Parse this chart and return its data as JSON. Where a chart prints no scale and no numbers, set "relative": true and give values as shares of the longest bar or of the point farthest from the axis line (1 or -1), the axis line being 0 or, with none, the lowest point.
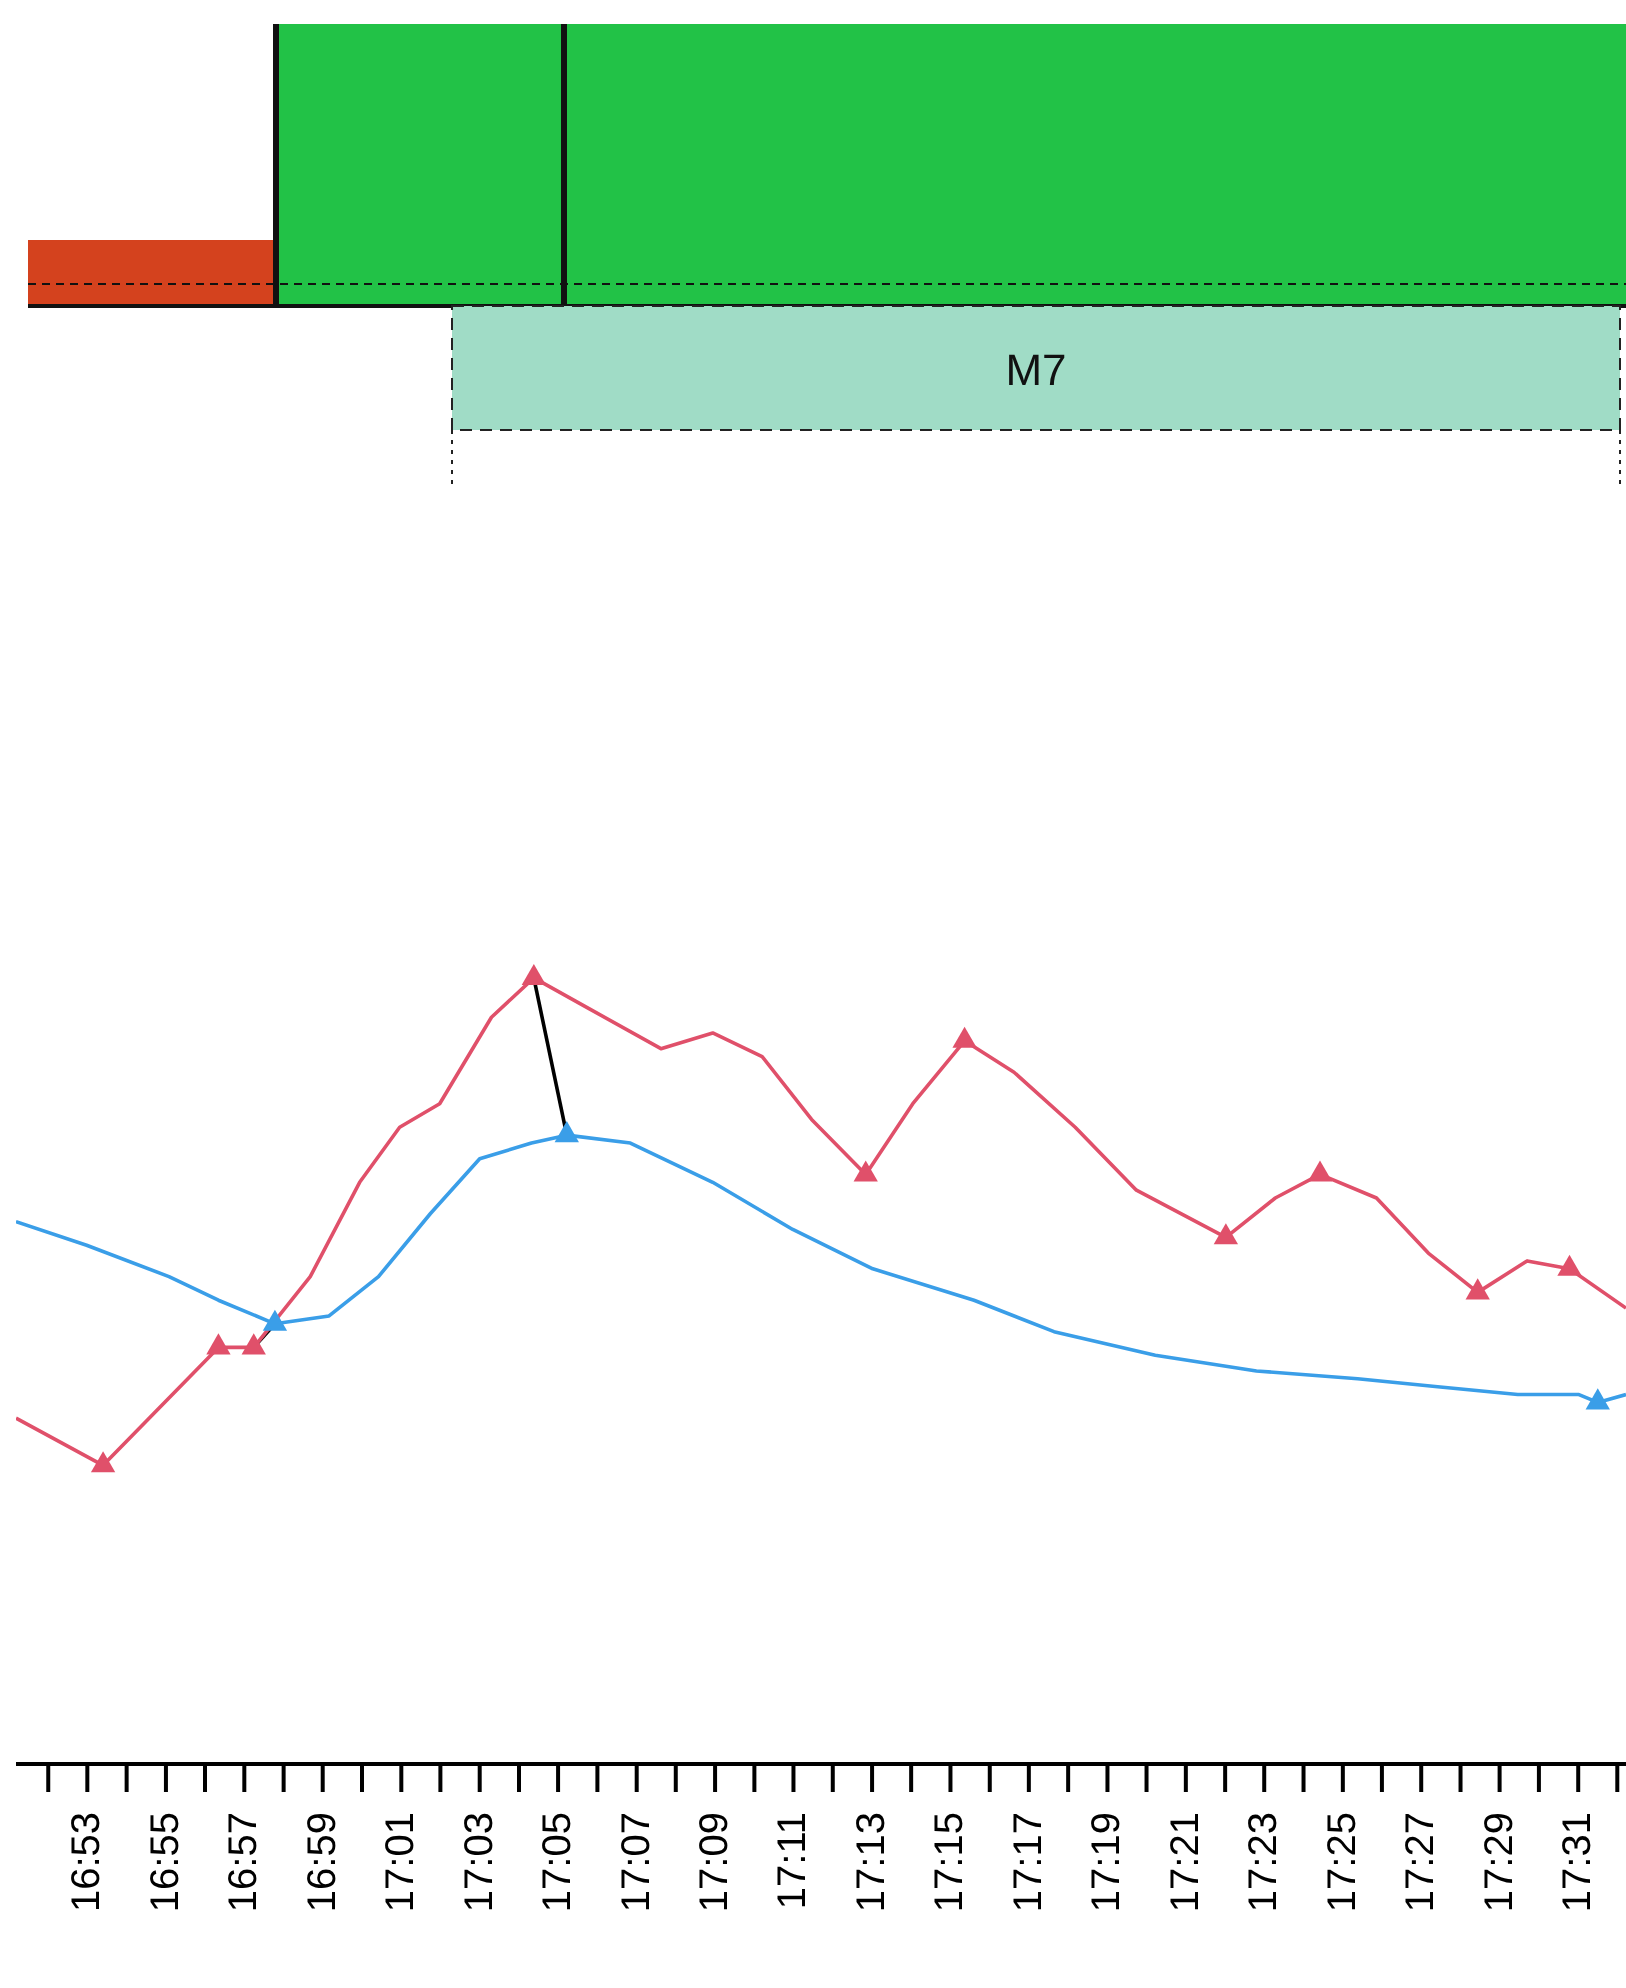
{
  "chart_data": [
    {
      "type": "other",
      "annotations": [
        "M7"
      ]
    },
    {
      "type": "line",
      "relative": true,
      "xlim": [
        16.853,
        17.537
      ],
      "xticks": [
        {
          "value": 16.8667,
          "label": null
        },
        {
          "value": 16.8833,
          "label": "16:53"
        },
        {
          "value": 16.9,
          "label": null
        },
        {
          "value": 16.9167,
          "label": "16:55"
        },
        {
          "value": 16.9333,
          "label": null
        },
        {
          "value": 16.95,
          "label": "16:57"
        },
        {
          "value": 16.9667,
          "label": null
        },
        {
          "value": 16.9833,
          "label": "16:59"
        },
        {
          "value": 17.0,
          "label": null
        },
        {
          "value": 17.0167,
          "label": "17:01"
        },
        {
          "value": 17.0333,
          "label": null
        },
        {
          "value": 17.05,
          "label": "17:03"
        },
        {
          "value": 17.0667,
          "label": null
        },
        {
          "value": 17.0833,
          "label": "17:05"
        },
        {
          "value": 17.1,
          "label": null
        },
        {
          "value": 17.1167,
          "label": "17:07"
        },
        {
          "value": 17.1333,
          "label": null
        },
        {
          "value": 17.15,
          "label": "17:09"
        },
        {
          "value": 17.1667,
          "label": null
        },
        {
          "value": 17.1833,
          "label": "17:11"
        },
        {
          "value": 17.2,
          "label": null
        },
        {
          "value": 17.2167,
          "label": "17:13"
        },
        {
          "value": 17.2333,
          "label": null
        },
        {
          "value": 17.25,
          "label": "17:15"
        },
        {
          "value": 17.2667,
          "label": null
        },
        {
          "value": 17.2833,
          "label": "17:17"
        },
        {
          "value": 17.3,
          "label": null
        },
        {
          "value": 17.3167,
          "label": "17:19"
        },
        {
          "value": 17.3333,
          "label": null
        },
        {
          "value": 17.35,
          "label": "17:21"
        },
        {
          "value": 17.3667,
          "label": null
        },
        {
          "value": 17.3833,
          "label": "17:23"
        },
        {
          "value": 17.4,
          "label": null
        },
        {
          "value": 17.4167,
          "label": "17:25"
        },
        {
          "value": 17.4333,
          "label": null
        },
        {
          "value": 17.45,
          "label": "17:27"
        },
        {
          "value": 17.4667,
          "label": null
        },
        {
          "value": 17.4833,
          "label": "17:29"
        },
        {
          "value": 17.5,
          "label": null
        },
        {
          "value": 17.5167,
          "label": "17:31"
        },
        {
          "value": 17.5333,
          "label": null
        }
      ],
      "series": [
        {
          "color": "#000000",
          "x": [
            17.073,
            17.087
          ],
          "values": [
            1,
            0.8
          ]
        },
        {
          "color": "#000000",
          "x": [
            16.954,
            16.963
          ],
          "values": [
            0.53,
            0.56
          ]
        },
        {
          "color": "#e0506a",
          "x": [
            16.853,
            16.89,
            16.926,
            16.939,
            16.954,
            16.978,
            16.999,
            17.016,
            17.033,
            17.055,
            17.073,
            17.097,
            17.127,
            17.149,
            17.17,
            17.191,
            17.214,
            17.234,
            17.256,
            17.277,
            17.303,
            17.329,
            17.367,
            17.388,
            17.407,
            17.431,
            17.453,
            17.474,
            17.495,
            17.513,
            17.537
          ],
          "values": [
            0.44,
            0.38,
            0.49,
            0.53,
            0.53,
            0.62,
            0.74,
            0.81,
            0.84,
            0.95,
            1,
            0.96,
            0.91,
            0.93,
            0.9,
            0.82,
            0.75,
            0.84,
            0.92,
            0.88,
            0.81,
            0.73,
            0.67,
            0.72,
            0.75,
            0.72,
            0.65,
            0.6,
            0.64,
            0.63,
            0.58
          ]
        },
        {
          "color": "#3a9ee8",
          "x": [
            16.853,
            16.883,
            16.918,
            16.939,
            16.963,
            16.986,
            17.007,
            17.029,
            17.05,
            17.072,
            17.087,
            17.114,
            17.149,
            17.183,
            17.217,
            17.26,
            17.294,
            17.337,
            17.38,
            17.423,
            17.457,
            17.491,
            17.517,
            17.525,
            17.537
          ],
          "values": [
            0.69,
            0.66,
            0.62,
            0.59,
            0.56,
            0.57,
            0.62,
            0.7,
            0.77,
            0.79,
            0.8,
            0.79,
            0.74,
            0.68,
            0.63,
            0.59,
            0.55,
            0.52,
            0.5,
            0.49,
            0.48,
            0.47,
            0.47,
            0.46,
            0.47
          ]
        },
        {
          "type": "scatter",
          "marker": "triangle",
          "color": "#e0506a",
          "x": [
            16.954,
            17.073,
            17.256,
            17.407,
            17.513
          ],
          "values": [
            0.53,
            1,
            0.92,
            0.75,
            0.63
          ]
        },
        {
          "type": "scatter",
          "marker": "triangle",
          "color": "#e0506a",
          "x": [
            16.89,
            16.939,
            17.214,
            17.367,
            17.474
          ],
          "values": [
            0.38,
            0.53,
            0.75,
            0.67,
            0.6
          ]
        },
        {
          "type": "scatter",
          "marker": "triangle",
          "color": "#3a9ee8",
          "x": [
            16.963,
            17.087,
            17.525
          ],
          "values": [
            0.56,
            0.8,
            0.46
          ]
        }
      ]
    }
  ]
}
